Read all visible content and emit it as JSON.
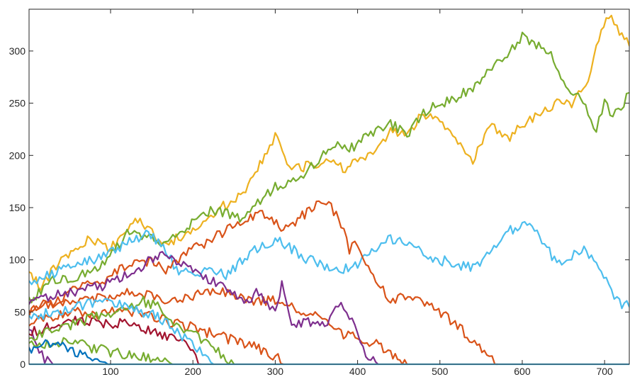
{
  "chart_data": {
    "type": "line",
    "title": "",
    "xlabel": "",
    "ylabel": "",
    "xlim": [
      1,
      730
    ],
    "ylim": [
      0,
      340
    ],
    "x_ticks": [
      100,
      200,
      300,
      400,
      500,
      600,
      700
    ],
    "y_ticks": [
      0,
      50,
      100,
      150,
      200,
      250,
      300
    ],
    "grid": false,
    "box": true,
    "series": [
      {
        "color": "#EDB120",
        "points": [
          [
            1,
            85
          ],
          [
            15,
            75
          ],
          [
            40,
            100
          ],
          [
            75,
            120
          ],
          [
            100,
            110
          ],
          [
            130,
            140
          ],
          [
            165,
            115
          ],
          [
            200,
            128
          ],
          [
            225,
            145
          ],
          [
            255,
            160
          ],
          [
            270,
            175
          ],
          [
            290,
            205
          ],
          [
            300,
            220
          ],
          [
            320,
            185
          ],
          [
            340,
            190
          ],
          [
            365,
            195
          ],
          [
            385,
            185
          ],
          [
            400,
            195
          ],
          [
            425,
            205
          ],
          [
            440,
            225
          ],
          [
            460,
            220
          ],
          [
            480,
            240
          ],
          [
            500,
            235
          ],
          [
            525,
            210
          ],
          [
            540,
            195
          ],
          [
            560,
            230
          ],
          [
            585,
            215
          ],
          [
            600,
            230
          ],
          [
            625,
            240
          ],
          [
            645,
            255
          ],
          [
            660,
            250
          ],
          [
            680,
            270
          ],
          [
            690,
            305
          ],
          [
            705,
            335
          ],
          [
            715,
            320
          ],
          [
            730,
            305
          ]
        ]
      },
      {
        "color": "#77AC30",
        "points": [
          [
            1,
            60
          ],
          [
            30,
            80
          ],
          [
            60,
            85
          ],
          [
            90,
            95
          ],
          [
            120,
            125
          ],
          [
            150,
            120
          ],
          [
            170,
            115
          ],
          [
            190,
            130
          ],
          [
            210,
            145
          ],
          [
            230,
            148
          ],
          [
            260,
            140
          ],
          [
            285,
            160
          ],
          [
            300,
            170
          ],
          [
            325,
            175
          ],
          [
            350,
            195
          ],
          [
            370,
            210
          ],
          [
            390,
            205
          ],
          [
            410,
            220
          ],
          [
            440,
            230
          ],
          [
            460,
            220
          ],
          [
            480,
            240
          ],
          [
            500,
            250
          ],
          [
            520,
            255
          ],
          [
            540,
            265
          ],
          [
            560,
            280
          ],
          [
            585,
            300
          ],
          [
            600,
            315
          ],
          [
            620,
            305
          ],
          [
            635,
            295
          ],
          [
            650,
            270
          ],
          [
            665,
            260
          ],
          [
            680,
            240
          ],
          [
            690,
            225
          ],
          [
            700,
            250
          ],
          [
            710,
            240
          ],
          [
            720,
            245
          ],
          [
            730,
            260
          ]
        ]
      },
      {
        "color": "#4DBEEE",
        "points": [
          [
            1,
            75
          ],
          [
            20,
            85
          ],
          [
            40,
            90
          ],
          [
            60,
            95
          ],
          [
            80,
            100
          ],
          [
            100,
            110
          ],
          [
            120,
            115
          ],
          [
            140,
            125
          ],
          [
            155,
            120
          ],
          [
            170,
            105
          ],
          [
            180,
            90
          ],
          [
            200,
            85
          ],
          [
            220,
            90
          ],
          [
            240,
            85
          ],
          [
            260,
            100
          ],
          [
            275,
            110
          ],
          [
            300,
            120
          ],
          [
            320,
            110
          ],
          [
            340,
            100
          ],
          [
            360,
            95
          ],
          [
            380,
            90
          ],
          [
            400,
            95
          ],
          [
            420,
            110
          ],
          [
            440,
            120
          ],
          [
            460,
            115
          ],
          [
            480,
            105
          ],
          [
            500,
            100
          ],
          [
            520,
            95
          ],
          [
            540,
            92
          ],
          [
            560,
            105
          ],
          [
            580,
            125
          ],
          [
            600,
            135
          ],
          [
            615,
            130
          ],
          [
            630,
            110
          ],
          [
            645,
            95
          ],
          [
            660,
            105
          ],
          [
            675,
            110
          ],
          [
            690,
            95
          ],
          [
            705,
            80
          ],
          [
            715,
            60
          ],
          [
            730,
            55
          ]
        ]
      },
      {
        "color": "#D95319",
        "points": [
          [
            1,
            50
          ],
          [
            30,
            60
          ],
          [
            60,
            72
          ],
          [
            90,
            80
          ],
          [
            120,
            95
          ],
          [
            150,
            98
          ],
          [
            170,
            90
          ],
          [
            195,
            110
          ],
          [
            220,
            118
          ],
          [
            245,
            130
          ],
          [
            270,
            140
          ],
          [
            290,
            145
          ],
          [
            310,
            130
          ],
          [
            330,
            140
          ],
          [
            350,
            152
          ],
          [
            365,
            155
          ],
          [
            380,
            135
          ],
          [
            390,
            110
          ],
          [
            400,
            115
          ],
          [
            410,
            95
          ],
          [
            425,
            80
          ],
          [
            440,
            60
          ],
          [
            455,
            65
          ],
          [
            470,
            60
          ],
          [
            490,
            55
          ],
          [
            510,
            45
          ],
          [
            530,
            30
          ],
          [
            545,
            20
          ],
          [
            560,
            5
          ],
          [
            570,
            0
          ]
        ]
      },
      {
        "color": "#D95319",
        "points": [
          [
            1,
            55
          ],
          [
            30,
            58
          ],
          [
            60,
            62
          ],
          [
            90,
            65
          ],
          [
            120,
            68
          ],
          [
            150,
            65
          ],
          [
            175,
            60
          ],
          [
            200,
            65
          ],
          [
            230,
            70
          ],
          [
            255,
            65
          ],
          [
            280,
            60
          ],
          [
            300,
            62
          ],
          [
            320,
            55
          ],
          [
            340,
            50
          ],
          [
            360,
            40
          ],
          [
            380,
            30
          ],
          [
            400,
            25
          ],
          [
            420,
            20
          ],
          [
            440,
            10
          ],
          [
            460,
            0
          ]
        ]
      },
      {
        "color": "#D95319",
        "points": [
          [
            1,
            40
          ],
          [
            30,
            45
          ],
          [
            60,
            50
          ],
          [
            90,
            48
          ],
          [
            120,
            52
          ],
          [
            150,
            45
          ],
          [
            175,
            40
          ],
          [
            200,
            35
          ],
          [
            220,
            30
          ],
          [
            240,
            25
          ],
          [
            260,
            20
          ],
          [
            280,
            15
          ],
          [
            300,
            8
          ],
          [
            310,
            0
          ]
        ]
      },
      {
        "color": "#7E2F8E",
        "points": [
          [
            1,
            60
          ],
          [
            30,
            65
          ],
          [
            60,
            70
          ],
          [
            90,
            75
          ],
          [
            120,
            85
          ],
          [
            140,
            95
          ],
          [
            160,
            105
          ],
          [
            180,
            100
          ],
          [
            200,
            90
          ],
          [
            225,
            80
          ],
          [
            245,
            70
          ],
          [
            265,
            60
          ],
          [
            280,
            70
          ],
          [
            290,
            60
          ],
          [
            300,
            50
          ],
          [
            308,
            75
          ],
          [
            320,
            40
          ],
          [
            340,
            40
          ],
          [
            360,
            35
          ],
          [
            370,
            55
          ],
          [
            380,
            60
          ],
          [
            390,
            45
          ],
          [
            400,
            30
          ],
          [
            410,
            10
          ],
          [
            425,
            0
          ]
        ]
      },
      {
        "color": "#7E2F8E",
        "points": [
          [
            1,
            35
          ],
          [
            10,
            15
          ],
          [
            20,
            5
          ],
          [
            30,
            0
          ]
        ]
      },
      {
        "color": "#A2142F",
        "points": [
          [
            1,
            30
          ],
          [
            20,
            35
          ],
          [
            40,
            38
          ],
          [
            60,
            42
          ],
          [
            80,
            40
          ],
          [
            100,
            38
          ],
          [
            120,
            42
          ],
          [
            140,
            35
          ],
          [
            160,
            30
          ],
          [
            180,
            25
          ],
          [
            200,
            10
          ],
          [
            210,
            0
          ]
        ]
      },
      {
        "color": "#77AC30",
        "points": [
          [
            1,
            25
          ],
          [
            20,
            30
          ],
          [
            40,
            35
          ],
          [
            60,
            40
          ],
          [
            80,
            45
          ],
          [
            100,
            48
          ],
          [
            120,
            55
          ],
          [
            140,
            60
          ],
          [
            160,
            55
          ],
          [
            170,
            45
          ],
          [
            180,
            35
          ],
          [
            195,
            30
          ],
          [
            210,
            25
          ],
          [
            225,
            15
          ],
          [
            240,
            5
          ],
          [
            250,
            0
          ]
        ]
      },
      {
        "color": "#77AC30",
        "points": [
          [
            1,
            20
          ],
          [
            20,
            18
          ],
          [
            40,
            22
          ],
          [
            60,
            20
          ],
          [
            80,
            15
          ],
          [
            100,
            12
          ],
          [
            120,
            10
          ],
          [
            140,
            8
          ],
          [
            160,
            5
          ],
          [
            175,
            0
          ]
        ]
      },
      {
        "color": "#0072BD",
        "points": [
          [
            1,
            15
          ],
          [
            15,
            18
          ],
          [
            30,
            20
          ],
          [
            45,
            15
          ],
          [
            60,
            10
          ],
          [
            75,
            8
          ],
          [
            90,
            5
          ],
          [
            100,
            0
          ]
        ]
      },
      {
        "color": "#4DBEEE",
        "points": [
          [
            1,
            45
          ],
          [
            30,
            50
          ],
          [
            60,
            55
          ],
          [
            90,
            60
          ],
          [
            120,
            58
          ],
          [
            140,
            50
          ],
          [
            160,
            45
          ],
          [
            175,
            35
          ],
          [
            190,
            25
          ],
          [
            205,
            15
          ],
          [
            215,
            5
          ],
          [
            225,
            0
          ]
        ]
      },
      {
        "color": "#4DBEEE",
        "points": [
          [
            1,
            0
          ],
          [
            730,
            0
          ]
        ]
      }
    ]
  }
}
